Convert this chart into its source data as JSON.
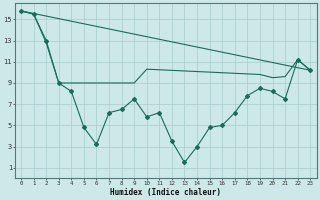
{
  "xlabel": "Humidex (Indice chaleur)",
  "bg_color": "#cce8e8",
  "line_color": "#1a6b5a",
  "grid_color": "#a8cccc",
  "xlim": [
    -0.5,
    23.5
  ],
  "ylim": [
    0,
    16.5
  ],
  "yticks": [
    1,
    3,
    5,
    7,
    9,
    11,
    13,
    15
  ],
  "xticks": [
    0,
    1,
    2,
    3,
    4,
    5,
    6,
    7,
    8,
    9,
    10,
    11,
    12,
    13,
    14,
    15,
    16,
    17,
    18,
    19,
    20,
    21,
    22,
    23
  ],
  "line1_x": [
    0,
    1,
    2,
    3,
    4,
    5,
    6,
    7,
    8,
    9,
    10,
    11,
    12,
    13,
    14,
    15,
    16,
    17,
    18,
    19,
    20,
    21,
    22,
    23
  ],
  "line1_y": [
    15.8,
    15.5,
    13.0,
    9.0,
    8.2,
    4.8,
    3.2,
    6.2,
    6.5,
    7.5,
    5.8,
    6.2,
    3.5,
    1.5,
    3.0,
    4.8,
    5.0,
    6.2,
    7.8,
    8.5,
    8.2,
    7.5,
    11.2,
    10.2
  ],
  "line2_x": [
    0,
    23
  ],
  "line2_y": [
    15.8,
    10.2
  ],
  "line3_x": [
    0,
    1,
    2,
    3,
    9,
    10,
    19,
    20,
    21,
    22,
    23
  ],
  "line3_y": [
    15.8,
    15.5,
    12.8,
    9.0,
    9.0,
    10.3,
    9.8,
    9.5,
    9.6,
    11.2,
    10.2
  ]
}
